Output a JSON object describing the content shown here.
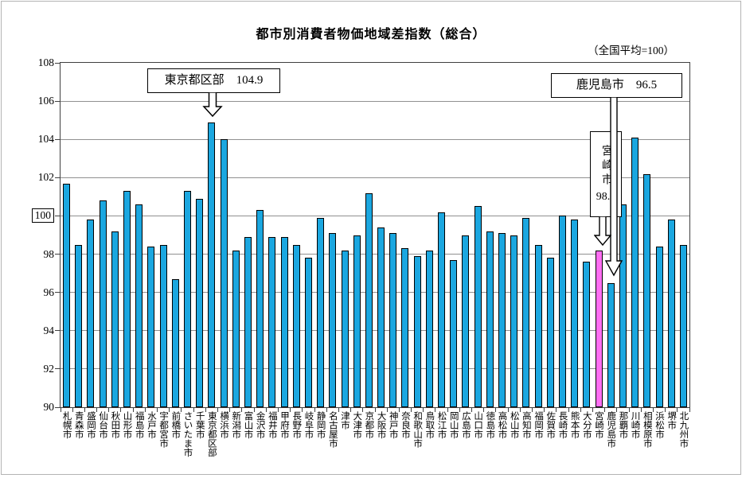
{
  "title": "都市別消費者物価地域差指数（総合）",
  "subtitle": "（全国平均=100）",
  "callouts": {
    "tokyo": {
      "text": "東京都区部　104.9"
    },
    "kagoshima": {
      "text": "鹿児島市　96.5"
    },
    "miyazaki": {
      "city": "宮崎市",
      "value": "98.2"
    }
  },
  "chart_data": {
    "type": "bar",
    "title": "都市別消費者物価地域差指数（総合）",
    "note": "（全国平均=100）",
    "ylim": [
      90,
      108
    ],
    "y_ticks": [
      90,
      92,
      94,
      96,
      98,
      100,
      102,
      104,
      106,
      108
    ],
    "boxed_y_tick": 100,
    "grid": true,
    "legend": "none",
    "bar_color": "#1ba7e0",
    "highlight_color": "#ff6ef2",
    "highlight_index": 44,
    "categories": [
      "札幌市",
      "青森市",
      "盛岡市",
      "仙台市",
      "秋田市",
      "山形市",
      "福島市",
      "水戸市",
      "宇都宮市",
      "前橋市",
      "さいたま市",
      "千葉市",
      "東京都区部",
      "横浜市",
      "新潟市",
      "富山市",
      "金沢市",
      "福井市",
      "甲府市",
      "長野市",
      "岐阜市",
      "静岡市",
      "名古屋市",
      "津市",
      "大津市",
      "京都市",
      "大阪市",
      "神戸市",
      "奈良市",
      "和歌山市",
      "鳥取市",
      "松江市",
      "岡山市",
      "広島市",
      "山口市",
      "徳島市",
      "高松市",
      "松山市",
      "高知市",
      "福岡市",
      "佐賀市",
      "長崎市",
      "熊本市",
      "大分市",
      "宮崎市",
      "鹿児島市",
      "那覇市",
      "川崎市",
      "相模原市",
      "浜松市",
      "堺市",
      "北九州市"
    ],
    "values": [
      101.7,
      98.5,
      99.8,
      100.8,
      99.2,
      101.3,
      100.6,
      98.4,
      98.5,
      96.7,
      101.3,
      100.9,
      104.9,
      104.0,
      98.2,
      98.9,
      100.3,
      98.9,
      98.9,
      98.5,
      97.8,
      99.9,
      99.1,
      98.2,
      99.0,
      101.2,
      99.4,
      99.1,
      98.3,
      97.9,
      98.2,
      100.2,
      97.7,
      99.0,
      100.5,
      99.2,
      99.1,
      99.0,
      99.9,
      98.5,
      97.8,
      100.0,
      99.8,
      97.6,
      98.2,
      96.5,
      100.6,
      104.1,
      102.2,
      98.4,
      99.8,
      98.5
    ],
    "annotations": [
      {
        "target": "東京都区部",
        "text": "東京都区部　104.9"
      },
      {
        "target": "鹿児島市",
        "text": "鹿児島市　96.5"
      },
      {
        "target": "宮崎市",
        "text": "宮崎市 98.2"
      }
    ]
  }
}
